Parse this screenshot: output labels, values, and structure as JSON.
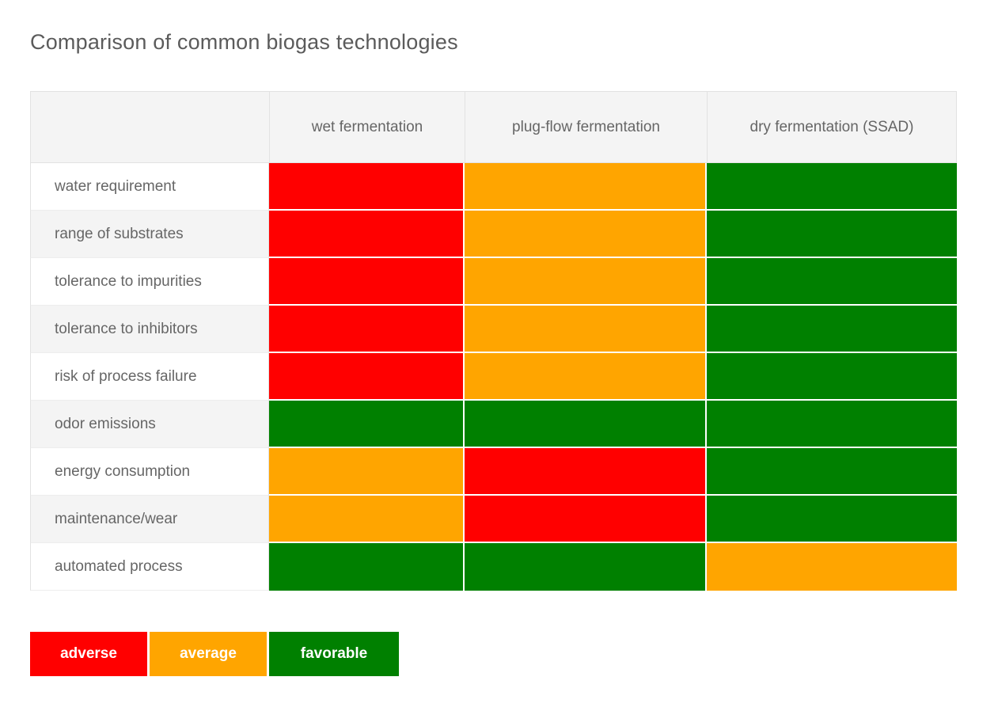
{
  "chart_data": {
    "type": "heatmap",
    "title": "Comparison of common biogas technologies",
    "columns": [
      "wet fermentation",
      "plug-flow fermentation",
      "dry fermentation (SSAD)"
    ],
    "rows": [
      "water requirement",
      "range of substrates",
      "tolerance to impurities",
      "tolerance to inhibitors",
      "risk of process failure",
      "odor emissions",
      "energy consumption",
      "maintenance/wear",
      "automated process"
    ],
    "values": [
      [
        "adverse",
        "average",
        "favorable"
      ],
      [
        "adverse",
        "average",
        "favorable"
      ],
      [
        "adverse",
        "average",
        "favorable"
      ],
      [
        "adverse",
        "average",
        "favorable"
      ],
      [
        "adverse",
        "average",
        "favorable"
      ],
      [
        "favorable",
        "favorable",
        "favorable"
      ],
      [
        "average",
        "adverse",
        "favorable"
      ],
      [
        "average",
        "adverse",
        "favorable"
      ],
      [
        "favorable",
        "favorable",
        "average"
      ]
    ],
    "colors": {
      "adverse": "#ff0000",
      "average": "#ffa500",
      "favorable": "#008000"
    },
    "legend": [
      {
        "label": "adverse",
        "color": "#ff0000"
      },
      {
        "label": "average",
        "color": "#ffa500"
      },
      {
        "label": "favorable",
        "color": "#008000"
      }
    ],
    "layout": {
      "legend_position": "bottom-left",
      "header_background": "#f4f4f4",
      "row_alt_background": "#f4f4f4"
    }
  }
}
